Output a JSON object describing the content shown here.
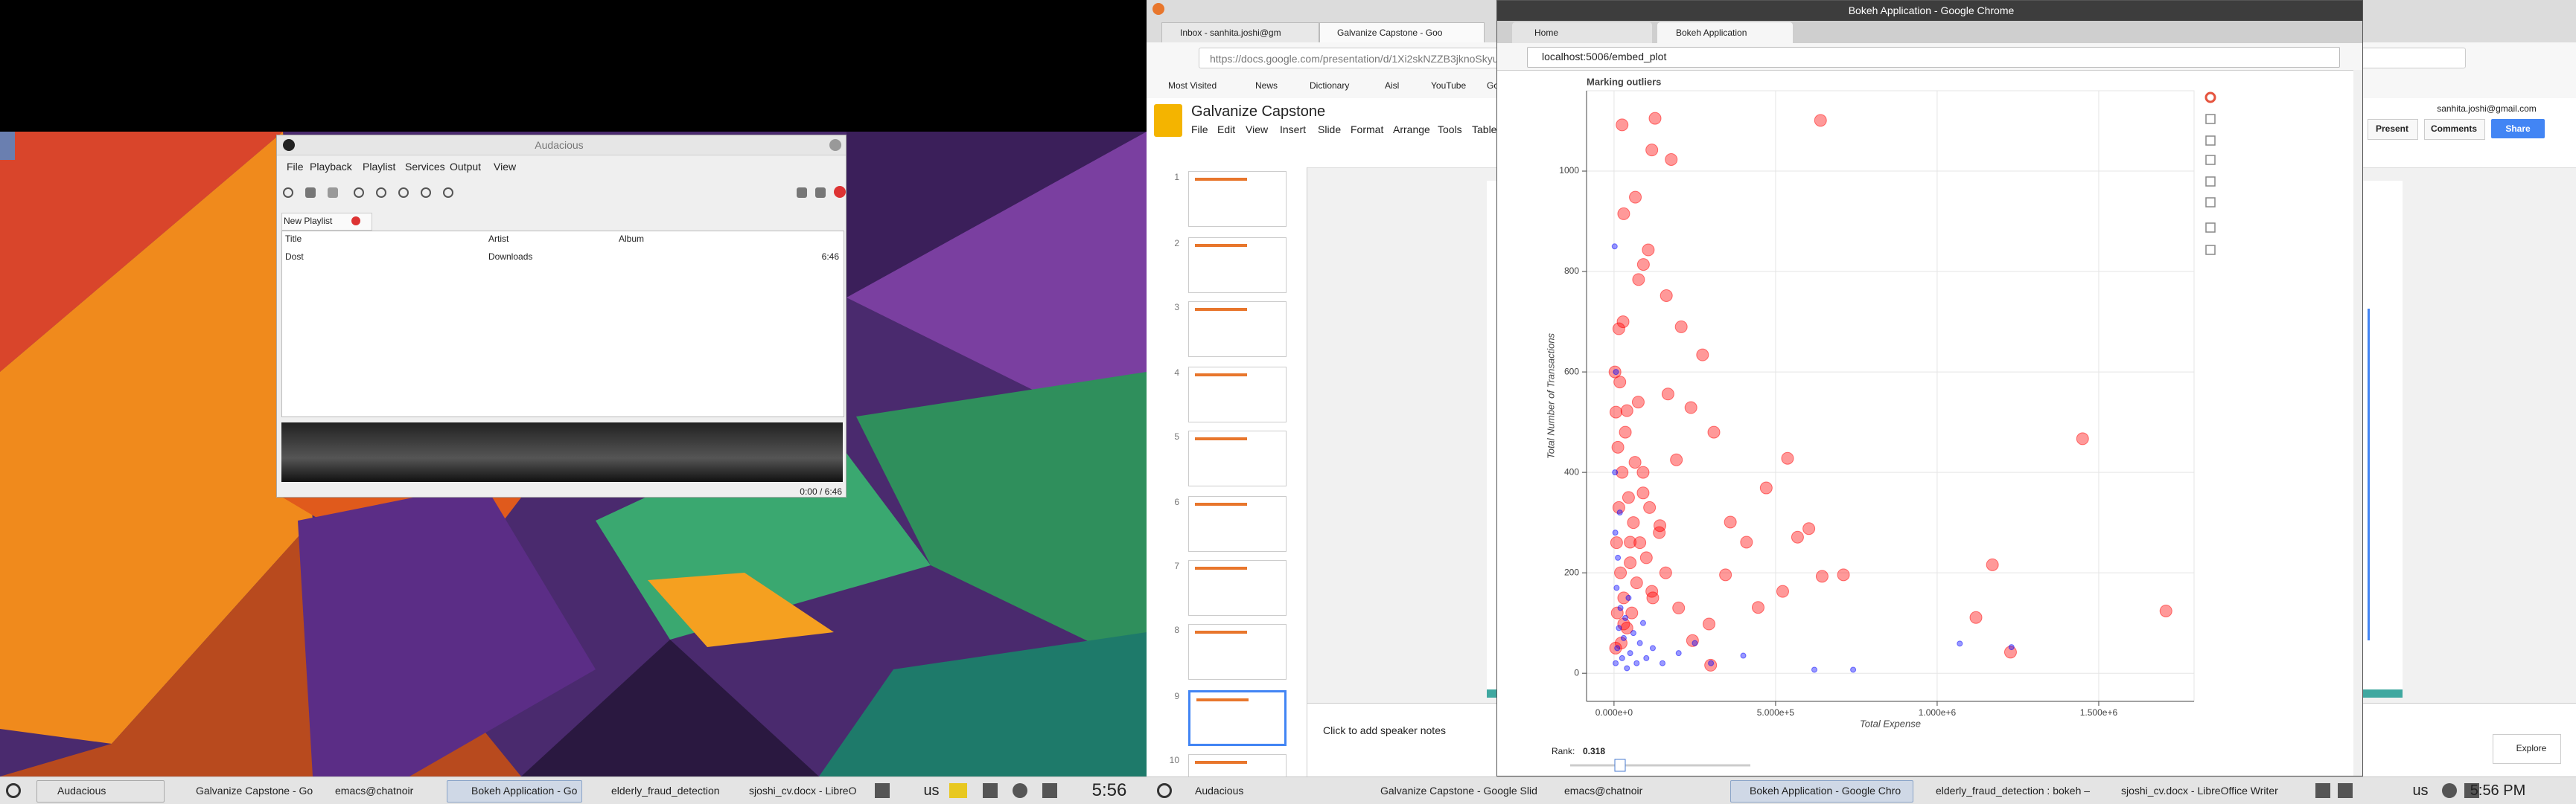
{
  "left_screen": {
    "audacious": {
      "title": "Audacious",
      "menu": [
        "File",
        "Playback",
        "Playlist",
        "Services",
        "Output",
        "View"
      ],
      "playlist_tab": "New Playlist",
      "columns": [
        "Title",
        "Artist",
        "Album"
      ],
      "rows": [
        [
          "Dost",
          "Downloads",
          "6:46"
        ]
      ],
      "time": "0:00 / 6:46"
    },
    "taskbar": {
      "items": [
        "Audacious",
        "Galvanize Capstone - Go",
        "emacs@chatnoir",
        "Bokeh Application - Go",
        "elderly_fraud_detection",
        "sjoshi_cv.docx - LibreO"
      ],
      "keyboard": "us",
      "clock": "5:56"
    }
  },
  "firefox": {
    "tabs": [
      "Inbox - sanhita.joshi@gm",
      "Galvanize Capstone - Goo"
    ],
    "url": "https://docs.google.com/presentation/d/1Xi2skNZZB3jknoSkyuG",
    "bookmarks": [
      "Most Visited",
      "News",
      "Dictionary",
      "Aisl",
      "YouTube",
      "Go"
    ],
    "doc_title": "Galvanize Capstone",
    "menu": [
      "File",
      "Edit",
      "View",
      "Insert",
      "Slide",
      "Format",
      "Arrange",
      "Tools",
      "Table"
    ],
    "slide_numbers": [
      "1",
      "2",
      "3",
      "4",
      "5",
      "6",
      "7",
      "8",
      "9",
      "10"
    ],
    "speaker_notes": "Click to add speaker notes",
    "account": "sanhita.joshi@gmail.com",
    "buttons": [
      "Present",
      "Comments",
      "Share"
    ],
    "explore": "Explore"
  },
  "chrome": {
    "title": "Bokeh Application - Google Chrome",
    "tabs": [
      "Home",
      "Bokeh Application"
    ],
    "url": "localhost:5006/embed_plot",
    "slider_label": "Rank:",
    "slider_value": "0.318"
  },
  "chart_data": {
    "type": "scatter",
    "title": "Marking outliers",
    "x_label": "Total Expense",
    "y_label": "Total Number of Transactions",
    "xlim": [
      -85000,
      1795000
    ],
    "ylim": [
      -56,
      1160
    ],
    "xticks": [
      {
        "value": 0,
        "label": "0.000e+0"
      },
      {
        "value": 500000,
        "label": "5.000e+5"
      },
      {
        "value": 1000000,
        "label": "1.000e+6"
      },
      {
        "value": 1500000,
        "label": "1.500e+6"
      }
    ],
    "yticks": [
      0,
      200,
      400,
      600,
      800,
      1000
    ],
    "grid": true,
    "series": [
      {
        "color": "#ff0000",
        "x": [
          639000,
          127000,
          25000,
          177000,
          117000,
          1450000,
          1171000,
          1708000,
          1120000,
          1227000,
          537000,
          471000,
          309000,
          274000,
          208000,
          162000,
          106000,
          91000,
          568000,
          603000,
          710000,
          644000,
          238000,
          360000,
          90000,
          40000,
          15000,
          30000,
          66000,
          345000,
          410000,
          193000,
          142000,
          294000,
          446000,
          522000,
          243000,
          117000,
          50000,
          30000,
          167000,
          76000,
          299000,
          5000,
          10000,
          20000,
          8000,
          15000,
          25000,
          30000,
          40000,
          12000,
          6000,
          18000,
          50000,
          60000,
          35000,
          45000,
          70000,
          80000,
          55000,
          22000,
          3000,
          90000,
          100000,
          120000,
          28000,
          65000,
          140000,
          160000,
          75000,
          110000,
          200000
        ],
        "values": [
          1101,
          1105,
          1092,
          1023,
          1042,
          467,
          216,
          124,
          111,
          42,
          428,
          369,
          480,
          634,
          690,
          752,
          843,
          814,
          271,
          288,
          196,
          193,
          529,
          301,
          359,
          523,
          686,
          915,
          948,
          196,
          261,
          425,
          294,
          98,
          131,
          163,
          65,
          163,
          261,
          98,
          556,
          784,
          16,
          50,
          120,
          200,
          260,
          330,
          400,
          150,
          90,
          450,
          520,
          580,
          220,
          300,
          480,
          350,
          180,
          260,
          120,
          60,
          600,
          400,
          230,
          150,
          700,
          420,
          280,
          200,
          540,
          330,
          130
        ]
      },
      {
        "color": "#0000ff",
        "x": [
          5000,
          10000,
          15000,
          20000,
          25000,
          30000,
          35000,
          40000,
          50000,
          60000,
          70000,
          80000,
          90000,
          100000,
          120000,
          150000,
          8000,
          12000,
          4000,
          18000,
          3000,
          6000,
          2000,
          45000,
          200000,
          250000,
          1070000,
          1230000,
          740000,
          620000,
          300000,
          400000
        ],
        "values": [
          20,
          50,
          90,
          130,
          30,
          70,
          110,
          10,
          40,
          80,
          20,
          60,
          100,
          30,
          50,
          20,
          170,
          230,
          280,
          320,
          400,
          600,
          850,
          150,
          40,
          60,
          59,
          52,
          7,
          7,
          20,
          35
        ]
      }
    ]
  },
  "right_taskbar": {
    "items": [
      "Audacious",
      "Galvanize Capstone - Google Slid",
      "emacs@chatnoir",
      "Bokeh Application - Google Chro",
      "elderly_fraud_detection : bokeh –",
      "sjoshi_cv.docx - LibreOffice Writer"
    ],
    "keyboard": "us",
    "clock": "5:56 PM"
  }
}
